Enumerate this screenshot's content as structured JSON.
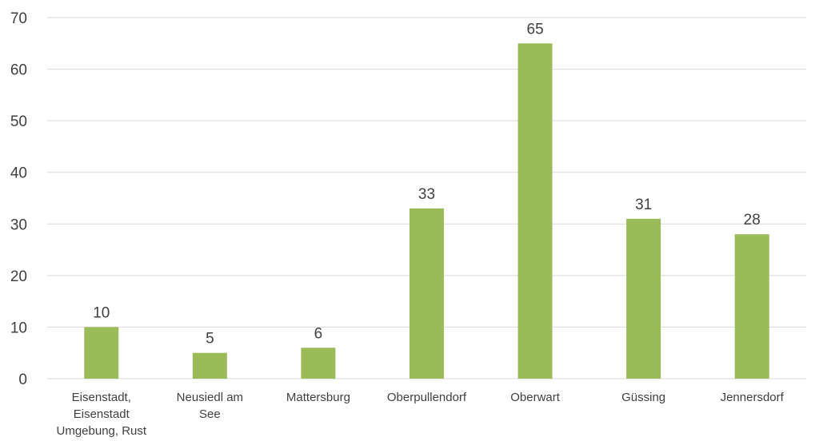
{
  "chart_data": {
    "type": "bar",
    "title": "",
    "xlabel": "",
    "ylabel": "",
    "categories": [
      [
        "Eisenstadt,",
        "Eisenstadt",
        "Umgebung, Rust"
      ],
      [
        "Neusiedl am",
        "See"
      ],
      [
        "Mattersburg"
      ],
      [
        "Oberpullendorf"
      ],
      [
        "Oberwart"
      ],
      [
        "Güssing"
      ],
      [
        "Jennersdorf"
      ]
    ],
    "values": [
      10,
      5,
      6,
      33,
      65,
      31,
      28
    ],
    "ylim": [
      0,
      70
    ],
    "yticks": [
      0,
      10,
      20,
      30,
      40,
      50,
      60,
      70
    ],
    "grid": true,
    "legend": "none",
    "bar_color": "#9bbb59"
  }
}
